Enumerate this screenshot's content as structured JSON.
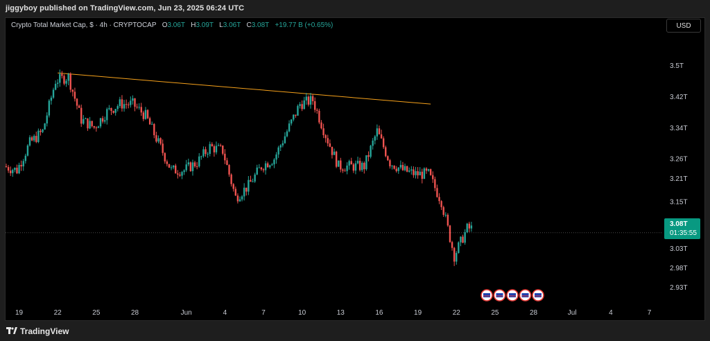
{
  "header": {
    "published_text": "jiggyboy published on TradingView.com, Jun 23, 2025 06:24 UTC"
  },
  "legend": {
    "symbol": "Crypto Total Market Cap, $ · 4h · CRYPTOCAP",
    "o_label": "O",
    "o_value": "3.06T",
    "h_label": "H",
    "h_value": "3.09T",
    "l_label": "L",
    "l_value": "3.06T",
    "c_label": "C",
    "c_value": "3.08T",
    "change": "+19.77 B (+0.65%)"
  },
  "currency_button": "USD",
  "price_label": {
    "price": "3.08T",
    "countdown": "01:35:55"
  },
  "footer": {
    "brand": "TradingView"
  },
  "colors": {
    "up": "#26a69a",
    "down": "#ef5350",
    "trendline": "#f7a21b",
    "price_tag": "#089981"
  },
  "chart_data": {
    "type": "candlestick",
    "title": "Crypto Total Market Cap, $ · 4h · CRYPTOCAP",
    "y_ticks": [
      "3.5T",
      "3.42T",
      "3.34T",
      "3.26T",
      "3.21T",
      "3.15T",
      "3.03T",
      "2.98T",
      "2.93T"
    ],
    "x_ticks": [
      "19",
      "22",
      "25",
      "28",
      "Jun",
      "4",
      "7",
      "10",
      "13",
      "16",
      "19",
      "22",
      "25",
      "28",
      "Jul",
      "4",
      "7"
    ],
    "ylim": [
      2.91,
      3.55
    ],
    "current_price": 3.08,
    "trendline": {
      "from": {
        "date": "May 22",
        "value": 3.48
      },
      "to": {
        "date": "Jun 20",
        "value": 3.4
      }
    },
    "price_path": [
      [
        "May 18",
        3.24
      ],
      [
        "May 19",
        3.23
      ],
      [
        "May 20",
        3.3
      ],
      [
        "May 21",
        3.33
      ],
      [
        "May 22",
        3.46
      ],
      [
        "May 23",
        3.47
      ],
      [
        "May 24",
        3.36
      ],
      [
        "May 25",
        3.34
      ],
      [
        "May 26",
        3.38
      ],
      [
        "May 27",
        3.4
      ],
      [
        "May 28",
        3.4
      ],
      [
        "May 29",
        3.37
      ],
      [
        "May 30",
        3.3
      ],
      [
        "May 31",
        3.23
      ],
      [
        "Jun 1",
        3.23
      ],
      [
        "Jun 2",
        3.25
      ],
      [
        "Jun 3",
        3.29
      ],
      [
        "Jun 4",
        3.28
      ],
      [
        "Jun 5",
        3.16
      ],
      [
        "Jun 6",
        3.19
      ],
      [
        "Jun 7",
        3.24
      ],
      [
        "Jun 8",
        3.26
      ],
      [
        "Jun 9",
        3.33
      ],
      [
        "Jun 10",
        3.4
      ],
      [
        "Jun 11",
        3.41
      ],
      [
        "Jun 12",
        3.32
      ],
      [
        "Jun 13",
        3.24
      ],
      [
        "Jun 14",
        3.24
      ],
      [
        "Jun 15",
        3.24
      ],
      [
        "Jun 16",
        3.33
      ],
      [
        "Jun 17",
        3.25
      ],
      [
        "Jun 18",
        3.23
      ],
      [
        "Jun 19",
        3.22
      ],
      [
        "Jun 20",
        3.22
      ],
      [
        "Jun 21",
        3.15
      ],
      [
        "Jun 22",
        3.01
      ],
      [
        "Jun 23",
        3.08
      ]
    ],
    "event_icons": 5
  }
}
